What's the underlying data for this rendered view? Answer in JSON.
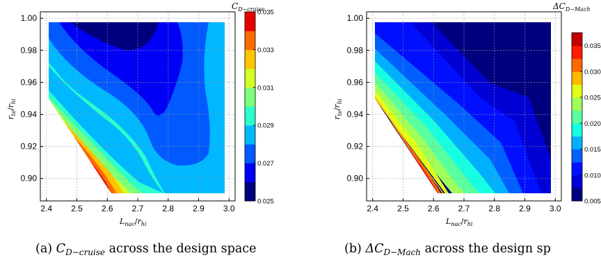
{
  "chart_data": [
    {
      "type": "contour",
      "caption_prefix": "(a)",
      "caption_var": "C",
      "caption_sub": "D−cruise",
      "caption_suffix": " across the design space",
      "xlabel_main": "L",
      "xlabel_sub": "nac",
      "xlabel_den_main": "r",
      "xlabel_den_sub": "hi",
      "ylabel_main": "r",
      "ylabel_sub": "te",
      "ylabel_den_main": "r",
      "ylabel_den_sub": "hi",
      "xlim": [
        2.38,
        3.02
      ],
      "ylim": [
        0.886,
        1.004
      ],
      "xticks": [
        "2.4",
        "2.5",
        "2.6",
        "2.7",
        "2.8",
        "2.9",
        "3.0"
      ],
      "yticks": [
        "0.90",
        "0.92",
        "0.94",
        "0.96",
        "0.98",
        "1.00"
      ],
      "grid": true,
      "colorbar_title_main": "C",
      "colorbar_title_sub": "D−cruise",
      "colorbar_levels": [
        0.025,
        0.026,
        0.027,
        0.028,
        0.029,
        0.03,
        0.031,
        0.032,
        0.033,
        0.034,
        0.035
      ],
      "colorbar_ticks": [
        "0.025",
        "0.027",
        "0.029",
        "0.031",
        "0.033",
        "0.035"
      ],
      "colormap": [
        "#00007f",
        "#0000f5",
        "#005aff",
        "#00b8ff",
        "#2bffcb",
        "#7cff7a",
        "#d2ff24",
        "#ffc400",
        "#ff6a00",
        "#e70000",
        "#7f0000"
      ]
    },
    {
      "type": "contour",
      "caption_prefix": "(b)",
      "caption_var": "ΔC",
      "caption_sub": "D−Mach",
      "caption_suffix": " across the design sp",
      "xlabel_main": "L",
      "xlabel_sub": "nac",
      "xlabel_den_main": "r",
      "xlabel_den_sub": "hi",
      "ylabel_main": "r",
      "ylabel_sub": "te",
      "ylabel_den_main": "r",
      "ylabel_den_sub": "hi",
      "xlim": [
        2.38,
        3.02
      ],
      "ylim": [
        0.886,
        1.004
      ],
      "xticks": [
        "2.4",
        "2.5",
        "2.6",
        "2.7",
        "2.8",
        "2.9",
        "3.0"
      ],
      "yticks": [
        "0.90",
        "0.92",
        "0.94",
        "0.96",
        "0.98",
        "1.00"
      ],
      "grid": true,
      "colorbar_title_main": "ΔC",
      "colorbar_title_sub": "D−Mach",
      "colorbar_levels": [
        0.005,
        0.0075,
        0.01,
        0.0125,
        0.015,
        0.0175,
        0.02,
        0.0225,
        0.025,
        0.0275,
        0.03,
        0.0325,
        0.035,
        0.0375
      ],
      "colorbar_ticks": [
        "0.005",
        "0.010",
        "0.015",
        "0.020",
        "0.025",
        "0.030",
        "0.035"
      ],
      "colormap": [
        "#00007f",
        "#0000d5",
        "#0010ff",
        "#0060ff",
        "#00b0ff",
        "#16ffe1",
        "#5affa0",
        "#a0ff5a",
        "#e1ff16",
        "#ffb900",
        "#ff6800",
        "#ff1a00",
        "#c40000",
        "#7f0000"
      ]
    }
  ]
}
